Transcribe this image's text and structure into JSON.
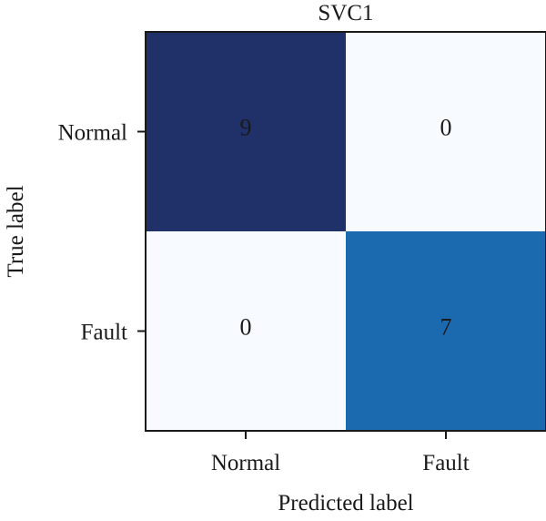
{
  "chart_data": {
    "type": "heatmap",
    "title": "SVC1",
    "xlabel": "Predicted label",
    "ylabel": "True label",
    "x_categories": [
      "Normal",
      "Fault"
    ],
    "y_categories": [
      "Normal",
      "Fault"
    ],
    "values": [
      [
        9,
        0
      ],
      [
        0,
        7
      ]
    ],
    "vmin": 0,
    "vmax": 9,
    "colormap": "Blues",
    "colors": {
      "low": "#f7fbff",
      "mid": "#1a6aaf",
      "high": "#1f3168",
      "axis": "#1a1a1a"
    }
  }
}
